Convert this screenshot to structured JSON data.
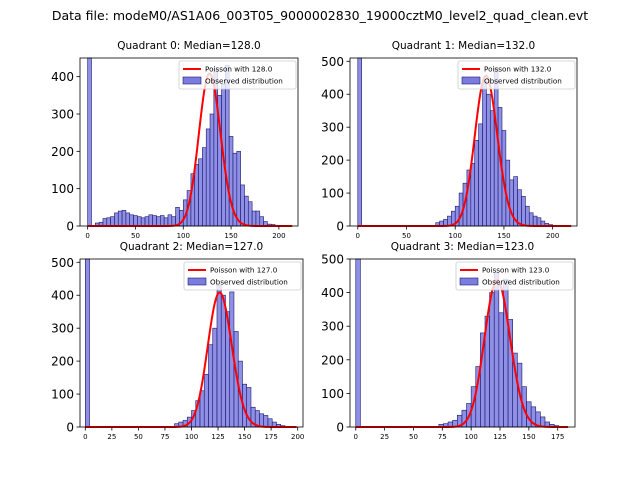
{
  "figure": {
    "suptitle": "Data file: modeM0/AS1A06_003T05_9000002830_19000cztM0_level2_quad_clean.evt",
    "colors": {
      "bar_fill": "#7b7be0",
      "bar_edge": "#1a1a6e",
      "poisson_line": "#ff0000"
    }
  },
  "chart_data": [
    {
      "type": "bar",
      "title": "Quadrant 0: Median=128.0",
      "median": 128.0,
      "xlim": [
        -8,
        220
      ],
      "ylim": [
        0,
        450
      ],
      "xticks": [
        0,
        50,
        100,
        150,
        200
      ],
      "yticks": [
        0,
        100,
        200,
        300,
        400
      ],
      "bin_width": 4,
      "zero_bin_value": 450,
      "bins": [
        [
          8,
          8
        ],
        [
          12,
          10
        ],
        [
          16,
          20
        ],
        [
          20,
          22
        ],
        [
          24,
          25
        ],
        [
          28,
          35
        ],
        [
          32,
          40
        ],
        [
          36,
          42
        ],
        [
          40,
          35
        ],
        [
          44,
          30
        ],
        [
          48,
          28
        ],
        [
          52,
          25
        ],
        [
          56,
          22
        ],
        [
          60,
          25
        ],
        [
          64,
          30
        ],
        [
          68,
          28
        ],
        [
          72,
          25
        ],
        [
          76,
          28
        ],
        [
          80,
          22
        ],
        [
          84,
          30
        ],
        [
          88,
          25
        ],
        [
          92,
          50
        ],
        [
          96,
          42
        ],
        [
          100,
          70
        ],
        [
          104,
          95
        ],
        [
          108,
          140
        ],
        [
          112,
          165
        ],
        [
          116,
          180
        ],
        [
          120,
          210
        ],
        [
          124,
          260
        ],
        [
          128,
          300
        ],
        [
          132,
          420
        ],
        [
          136,
          350
        ],
        [
          140,
          380
        ],
        [
          144,
          430
        ],
        [
          148,
          240
        ],
        [
          152,
          195
        ],
        [
          156,
          200
        ],
        [
          160,
          110
        ],
        [
          164,
          80
        ],
        [
          168,
          65
        ],
        [
          172,
          40
        ],
        [
          176,
          40
        ],
        [
          180,
          25
        ],
        [
          184,
          12
        ],
        [
          188,
          5
        ],
        [
          192,
          4
        ],
        [
          196,
          2
        ]
      ],
      "legend": [
        "Poisson with 128.0",
        "Observed distribution"
      ]
    },
    {
      "type": "bar",
      "title": "Quadrant 1: Median=132.0",
      "median": 132.0,
      "xlim": [
        -8,
        225
      ],
      "ylim": [
        0,
        510
      ],
      "xticks": [
        0,
        50,
        100,
        150,
        200
      ],
      "yticks": [
        0,
        100,
        200,
        300,
        400,
        500
      ],
      "bin_width": 4,
      "zero_bin_value": 510,
      "bins": [
        [
          80,
          10
        ],
        [
          84,
          15
        ],
        [
          88,
          20
        ],
        [
          92,
          30
        ],
        [
          96,
          45
        ],
        [
          100,
          60
        ],
        [
          104,
          100
        ],
        [
          108,
          130
        ],
        [
          112,
          170
        ],
        [
          116,
          190
        ],
        [
          120,
          260
        ],
        [
          124,
          310
        ],
        [
          128,
          440
        ],
        [
          132,
          400
        ],
        [
          136,
          350
        ],
        [
          140,
          480
        ],
        [
          144,
          360
        ],
        [
          148,
          290
        ],
        [
          152,
          200
        ],
        [
          156,
          140
        ],
        [
          160,
          150
        ],
        [
          164,
          110
        ],
        [
          168,
          90
        ],
        [
          172,
          60
        ],
        [
          176,
          40
        ],
        [
          180,
          30
        ],
        [
          184,
          25
        ],
        [
          188,
          15
        ],
        [
          192,
          8
        ],
        [
          196,
          4
        ]
      ],
      "legend": [
        "Poisson with 132.0",
        "Observed distribution"
      ]
    },
    {
      "type": "bar",
      "title": "Quadrant 2: Median=127.0",
      "median": 127.0,
      "xlim": [
        -5,
        205
      ],
      "ylim": [
        0,
        510
      ],
      "xticks": [
        0,
        25,
        50,
        75,
        100,
        125,
        150,
        175,
        200
      ],
      "yticks": [
        0,
        100,
        200,
        300,
        400,
        500
      ],
      "bin_width": 4,
      "zero_bin_value": 510,
      "bins": [
        [
          84,
          10
        ],
        [
          88,
          15
        ],
        [
          92,
          20
        ],
        [
          96,
          30
        ],
        [
          100,
          50
        ],
        [
          104,
          80
        ],
        [
          108,
          110
        ],
        [
          112,
          160
        ],
        [
          116,
          250
        ],
        [
          120,
          300
        ],
        [
          124,
          430
        ],
        [
          128,
          400
        ],
        [
          132,
          350
        ],
        [
          136,
          410
        ],
        [
          140,
          290
        ],
        [
          144,
          200
        ],
        [
          148,
          130
        ],
        [
          152,
          120
        ],
        [
          156,
          60
        ],
        [
          160,
          50
        ],
        [
          164,
          40
        ],
        [
          168,
          35
        ],
        [
          172,
          25
        ],
        [
          176,
          15
        ],
        [
          180,
          8
        ],
        [
          184,
          4
        ]
      ],
      "legend": [
        "Poisson with 127.0",
        "Observed distribution"
      ]
    },
    {
      "type": "bar",
      "title": "Quadrant 3: Median=123.0",
      "median": 123.0,
      "xlim": [
        -5,
        190
      ],
      "ylim": [
        0,
        500
      ],
      "xticks": [
        0,
        25,
        50,
        75,
        100,
        125,
        150,
        175
      ],
      "yticks": [
        0,
        100,
        200,
        300,
        400,
        500
      ],
      "bin_width": 4,
      "zero_bin_value": 500,
      "bins": [
        [
          72,
          8
        ],
        [
          76,
          10
        ],
        [
          80,
          15
        ],
        [
          84,
          20
        ],
        [
          88,
          35
        ],
        [
          92,
          50
        ],
        [
          96,
          70
        ],
        [
          100,
          120
        ],
        [
          104,
          180
        ],
        [
          108,
          280
        ],
        [
          112,
          330
        ],
        [
          116,
          400
        ],
        [
          120,
          460
        ],
        [
          124,
          340
        ],
        [
          128,
          440
        ],
        [
          132,
          320
        ],
        [
          136,
          220
        ],
        [
          140,
          190
        ],
        [
          144,
          120
        ],
        [
          148,
          75
        ],
        [
          152,
          60
        ],
        [
          156,
          45
        ],
        [
          160,
          30
        ],
        [
          164,
          15
        ],
        [
          168,
          8
        ],
        [
          172,
          4
        ]
      ],
      "legend": [
        "Poisson with 123.0",
        "Observed distribution"
      ]
    }
  ]
}
